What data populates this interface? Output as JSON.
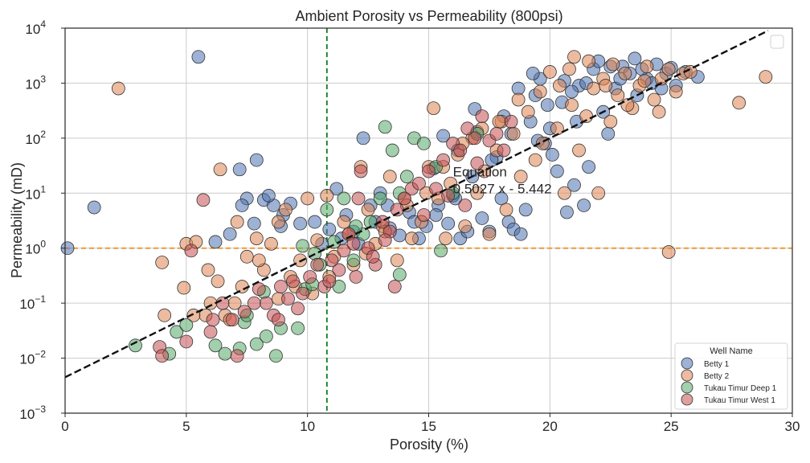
{
  "chart_data": {
    "type": "scatter",
    "title": "Ambient Porosity vs Permeability (800psi)",
    "xlabel": "Porosity (%)",
    "ylabel": "Permeability (mD)",
    "xlim": [
      0,
      30
    ],
    "ylim": [
      0.001,
      10000
    ],
    "y_scale": "log",
    "grid": true,
    "x_ticks": [
      "0",
      "5",
      "10",
      "15",
      "20",
      "25",
      "30"
    ],
    "y_ticks": [
      {
        "base": "10",
        "exp": "−3"
      },
      {
        "base": "10",
        "exp": "−2"
      },
      {
        "base": "10",
        "exp": "−1"
      },
      {
        "base": "10",
        "exp": "0"
      },
      {
        "base": "10",
        "exp": "1"
      },
      {
        "base": "10",
        "exp": "2"
      },
      {
        "base": "10",
        "exp": "3"
      },
      {
        "base": "10",
        "exp": "4"
      }
    ],
    "legend": {
      "title": "Well Name",
      "placement": "lower-right"
    },
    "reference_lines": {
      "vertical_x": 10.8,
      "horizontal_y": 1.0
    },
    "trendline": {
      "slope_log10": 0.5027,
      "intercept_log10": -5.442,
      "x_range": [
        0,
        29
      ]
    },
    "annotation": {
      "line1": "Equation",
      "line2": "0.5027 x - 5.442",
      "x": 16.0,
      "y": 20
    },
    "series": [
      {
        "name": "Betty 1",
        "color": "#4C72B0",
        "points": [
          [
            0.1,
            1.0
          ],
          [
            1.2,
            5.5
          ],
          [
            5.5,
            3000
          ],
          [
            7.2,
            27
          ],
          [
            7.9,
            40
          ],
          [
            7.5,
            8
          ],
          [
            7.8,
            2.8
          ],
          [
            8.2,
            7.5
          ],
          [
            8.6,
            6
          ],
          [
            9,
            4
          ],
          [
            9.7,
            2.8
          ],
          [
            10.3,
            3
          ],
          [
            10.6,
            1.2
          ],
          [
            11.2,
            12
          ],
          [
            11.6,
            4
          ],
          [
            12.1,
            1.2
          ],
          [
            12.3,
            100
          ],
          [
            12.6,
            6
          ],
          [
            13,
            10
          ],
          [
            13.4,
            2.3
          ],
          [
            13.8,
            1.7
          ],
          [
            14.2,
            4.5
          ],
          [
            14.6,
            1.5
          ],
          [
            14.9,
            2.5
          ],
          [
            15.2,
            28
          ],
          [
            15.4,
            6
          ],
          [
            15.6,
            110
          ],
          [
            15.8,
            2.8
          ],
          [
            16,
            9
          ],
          [
            16.3,
            1.5
          ],
          [
            16.6,
            2
          ],
          [
            16.9,
            340
          ],
          [
            17.2,
            3.5
          ],
          [
            17.5,
            2
          ],
          [
            17.8,
            45
          ],
          [
            18,
            8
          ],
          [
            18.3,
            3
          ],
          [
            18.5,
            2.2
          ],
          [
            18.8,
            1.8
          ],
          [
            19,
            5
          ],
          [
            19.2,
            200
          ],
          [
            19.4,
            600
          ],
          [
            19.6,
            1200
          ],
          [
            19.8,
            80
          ],
          [
            20.1,
            50
          ],
          [
            20.3,
            25
          ],
          [
            20.5,
            450
          ],
          [
            20.7,
            4.5
          ],
          [
            21,
            14
          ],
          [
            21.2,
            900
          ],
          [
            21.4,
            6
          ],
          [
            21.6,
            30
          ],
          [
            21.8,
            1800
          ],
          [
            22,
            2500
          ],
          [
            22.2,
            300
          ],
          [
            22.4,
            120
          ],
          [
            22.7,
            800
          ],
          [
            23,
            2000
          ],
          [
            23.3,
            1500
          ],
          [
            23.6,
            600
          ],
          [
            24,
            1200
          ],
          [
            24.4,
            2200
          ],
          [
            24.8,
            1500
          ],
          [
            25.2,
            900
          ],
          [
            25.6,
            1600
          ],
          [
            26.1,
            1300
          ],
          [
            16.2,
            60
          ],
          [
            17,
            130
          ],
          [
            18.1,
            250
          ],
          [
            18.7,
            800
          ],
          [
            19.9,
            400
          ],
          [
            20.9,
            700
          ],
          [
            21.5,
            1000
          ],
          [
            22.9,
            1200
          ],
          [
            23.8,
            1800
          ],
          [
            24.6,
            800
          ],
          [
            21.1,
            200
          ],
          [
            20,
            150
          ],
          [
            19.5,
            90
          ],
          [
            18.4,
            120
          ],
          [
            17.6,
            40
          ],
          [
            16.8,
            20
          ],
          [
            16.1,
            8
          ],
          [
            15.3,
            4
          ],
          [
            14.4,
            3
          ],
          [
            13.3,
            6
          ],
          [
            12.8,
            3
          ],
          [
            11.9,
            2
          ],
          [
            11.4,
            1.5
          ],
          [
            10.9,
            2.2
          ],
          [
            8.9,
            2.5
          ],
          [
            9.3,
            6.5
          ],
          [
            8.4,
            9
          ],
          [
            7.3,
            6
          ],
          [
            6.8,
            1.8
          ],
          [
            6.2,
            1.3
          ],
          [
            19.3,
            1500
          ],
          [
            20.6,
            1100
          ],
          [
            22.5,
            2000
          ],
          [
            23.5,
            2800
          ],
          [
            24.2,
            1000
          ],
          [
            25,
            1900
          ]
        ]
      },
      {
        "name": "Betty 2",
        "color": "#DD8452",
        "points": [
          [
            2.2,
            800
          ],
          [
            4,
            0.55
          ],
          [
            4.1,
            0.06
          ],
          [
            4.9,
            0.19
          ],
          [
            5,
            1.2
          ],
          [
            5.4,
            1.3
          ],
          [
            5.8,
            0.06
          ],
          [
            6,
            0.1
          ],
          [
            6.3,
            0.25
          ],
          [
            6.4,
            27
          ],
          [
            6.6,
            0.06
          ],
          [
            7,
            0.1
          ],
          [
            7.1,
            3
          ],
          [
            7.5,
            0.7
          ],
          [
            7.9,
            1.5
          ],
          [
            8.2,
            0.4
          ],
          [
            8.5,
            1.2
          ],
          [
            8.8,
            3
          ],
          [
            9.1,
            5
          ],
          [
            9.3,
            0.3
          ],
          [
            9.7,
            0.6
          ],
          [
            10,
            8
          ],
          [
            10.4,
            1.4
          ],
          [
            10.8,
            9
          ],
          [
            11.1,
            0.7
          ],
          [
            11.5,
            3
          ],
          [
            11.9,
            0.5
          ],
          [
            12.2,
            30
          ],
          [
            12.5,
            5
          ],
          [
            12.8,
            1.2
          ],
          [
            13.1,
            2.5
          ],
          [
            13.4,
            20
          ],
          [
            13.7,
            0.6
          ],
          [
            14,
            8
          ],
          [
            14.3,
            1.5
          ],
          [
            14.7,
            3
          ],
          [
            15,
            30
          ],
          [
            15.2,
            350
          ],
          [
            15.4,
            8
          ],
          [
            15.7,
            1.5
          ],
          [
            15.9,
            15
          ],
          [
            16.2,
            50
          ],
          [
            16.5,
            2.5
          ],
          [
            16.8,
            100
          ],
          [
            17,
            10
          ],
          [
            17.3,
            25
          ],
          [
            17.5,
            1.8
          ],
          [
            17.8,
            60
          ],
          [
            18,
            200
          ],
          [
            18.2,
            5
          ],
          [
            18.5,
            120
          ],
          [
            18.8,
            20
          ],
          [
            19.1,
            300
          ],
          [
            19.4,
            40
          ],
          [
            19.7,
            80
          ],
          [
            20,
            1600
          ],
          [
            20.3,
            150
          ],
          [
            20.6,
            10
          ],
          [
            20.9,
            400
          ],
          [
            21.2,
            60
          ],
          [
            21.5,
            250
          ],
          [
            21.8,
            800
          ],
          [
            22,
            10
          ],
          [
            22.2,
            1200
          ],
          [
            22.5,
            200
          ],
          [
            22.8,
            600
          ],
          [
            23.1,
            1500
          ],
          [
            23.4,
            350
          ],
          [
            23.7,
            900
          ],
          [
            24,
            2000
          ],
          [
            24.3,
            500
          ],
          [
            24.6,
            1200
          ],
          [
            24.9,
            1800
          ],
          [
            25.2,
            700
          ],
          [
            25.5,
            1500
          ],
          [
            24.9,
            0.85
          ],
          [
            27.8,
            440
          ],
          [
            28.9,
            1300
          ],
          [
            21,
            3000
          ],
          [
            22.6,
            2200
          ],
          [
            23.9,
            1100
          ],
          [
            20.4,
            900
          ],
          [
            19.6,
            700
          ],
          [
            18.7,
            500
          ],
          [
            17.9,
            200
          ],
          [
            17.2,
            150
          ],
          [
            16.4,
            80
          ],
          [
            15.6,
            30
          ],
          [
            14.9,
            10
          ],
          [
            14.1,
            6
          ],
          [
            13.2,
            2
          ],
          [
            12.4,
            0.8
          ],
          [
            11.7,
            1.8
          ],
          [
            10.9,
            0.3
          ],
          [
            10.2,
            0.15
          ],
          [
            9.5,
            0.2
          ],
          [
            8.8,
            0.12
          ],
          [
            8,
            0.6
          ],
          [
            7.3,
            0.2
          ],
          [
            6.8,
            0.05
          ],
          [
            5.9,
            0.4
          ],
          [
            5.3,
            0.06
          ],
          [
            20.8,
            1800
          ],
          [
            21.6,
            2500
          ],
          [
            22.3,
            900
          ],
          [
            23.2,
            400
          ],
          [
            24.5,
            300
          ],
          [
            25.8,
            1600
          ]
        ]
      },
      {
        "name": "Tukau Timur Deep 1",
        "color": "#55A868",
        "points": [
          [
            2.9,
            0.017
          ],
          [
            4.3,
            0.012
          ],
          [
            4.6,
            0.03
          ],
          [
            5,
            0.04
          ],
          [
            6.2,
            0.017
          ],
          [
            6.6,
            0.012
          ],
          [
            7.2,
            0.015
          ],
          [
            7.4,
            0.045
          ],
          [
            7.9,
            0.018
          ],
          [
            8.3,
            0.025
          ],
          [
            8.7,
            0.011
          ],
          [
            8.9,
            0.035
          ],
          [
            9.6,
            0.035
          ],
          [
            9.9,
            0.18
          ],
          [
            10.2,
            0.22
          ],
          [
            10.5,
            0.5
          ],
          [
            10.8,
            5
          ],
          [
            11.1,
            1.3
          ],
          [
            11.5,
            8
          ],
          [
            11.9,
            0.6
          ],
          [
            12.3,
            1.8
          ],
          [
            12.6,
            3
          ],
          [
            13,
            8
          ],
          [
            13.2,
            160
          ],
          [
            13.5,
            60
          ],
          [
            13.8,
            10
          ],
          [
            14.1,
            20
          ],
          [
            14.4,
            100
          ],
          [
            14.8,
            80
          ],
          [
            15.3,
            30
          ],
          [
            15.5,
            0.9
          ],
          [
            16,
            10
          ],
          [
            17,
            120
          ],
          [
            13.8,
            0.33
          ],
          [
            9.8,
            1.1
          ],
          [
            8.2,
            0.16
          ],
          [
            7.5,
            0.06
          ],
          [
            11.3,
            0.2
          ],
          [
            12,
            2.5
          ],
          [
            10.3,
            0.8
          ]
        ]
      },
      {
        "name": "Tukau Timur West 1",
        "color": "#C44E52",
        "points": [
          [
            3.9,
            0.016
          ],
          [
            4,
            0.011
          ],
          [
            5,
            0.02
          ],
          [
            5.2,
            0.9
          ],
          [
            5.7,
            7.5
          ],
          [
            6,
            0.03
          ],
          [
            6.5,
            0.1
          ],
          [
            6.9,
            0.05
          ],
          [
            7.1,
            0.011
          ],
          [
            7.4,
            0.07
          ],
          [
            8,
            0.18
          ],
          [
            8.3,
            0.1
          ],
          [
            8.6,
            0.06
          ],
          [
            8.9,
            0.2
          ],
          [
            9.2,
            0.12
          ],
          [
            9.4,
            0.25
          ],
          [
            9.8,
            0.15
          ],
          [
            10.1,
            0.3
          ],
          [
            10.4,
            0.5
          ],
          [
            10.7,
            0.2
          ],
          [
            11,
            0.6
          ],
          [
            11.3,
            0.4
          ],
          [
            11.7,
            1.8
          ],
          [
            12,
            0.3
          ],
          [
            12.2,
            25
          ],
          [
            12.5,
            1
          ],
          [
            12.8,
            0.5
          ],
          [
            13.1,
            3
          ],
          [
            13.4,
            2
          ],
          [
            13.7,
            5
          ],
          [
            14,
            8
          ],
          [
            14.3,
            12
          ],
          [
            14.6,
            15
          ],
          [
            15,
            25
          ],
          [
            15.3,
            12
          ],
          [
            15.6,
            40
          ],
          [
            16,
            80
          ],
          [
            16.3,
            60
          ],
          [
            16.6,
            150
          ],
          [
            16.9,
            100
          ],
          [
            17.2,
            250
          ],
          [
            17.5,
            90
          ],
          [
            17.8,
            120
          ],
          [
            18.1,
            60
          ],
          [
            18.4,
            200
          ],
          [
            12.1,
            8
          ],
          [
            11.5,
            0.9
          ],
          [
            10.9,
            0.25
          ],
          [
            9.6,
            0.08
          ],
          [
            8.8,
            0.05
          ],
          [
            7.8,
            0.1
          ],
          [
            6.1,
            0.05
          ],
          [
            13.6,
            0.2
          ],
          [
            14.8,
            4
          ],
          [
            15.8,
            9
          ],
          [
            16.5,
            6
          ],
          [
            17,
            35
          ],
          [
            13.2,
            1.4
          ],
          [
            12.7,
            0.7
          ],
          [
            11.9,
            1.2
          ]
        ]
      }
    ]
  }
}
